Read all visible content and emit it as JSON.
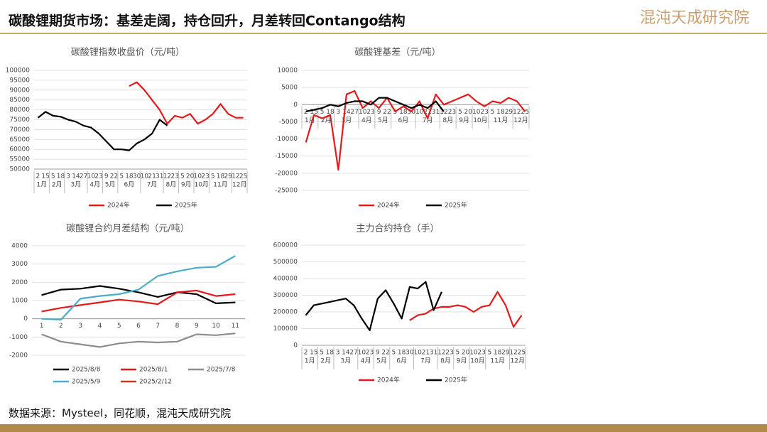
{
  "header": {
    "title": "碳酸锂期货市场：基差走阔，持仓回升，月差转回Contango结构",
    "logo": "混沌天成研究院"
  },
  "footer": {
    "source": "数据来源：Mysteel，同花顺，混沌天成研究院"
  },
  "chart_data": [
    {
      "type": "line",
      "title": "碳酸锂指数收盘价（元/吨）",
      "categories": [
        "2",
        "15",
        "5",
        "18",
        "3",
        "14",
        "27",
        "10",
        "23",
        "9",
        "22",
        "5",
        "18",
        "30",
        "10",
        "21",
        "31",
        "12",
        "23",
        "5",
        "20",
        "10",
        "23",
        "5",
        "18",
        "29",
        "12",
        "25"
      ],
      "groups": [
        {
          "label": "1月",
          "span": 2
        },
        {
          "label": "2月",
          "span": 2
        },
        {
          "label": "3月",
          "span": 3
        },
        {
          "label": "4月",
          "span": 2
        },
        {
          "label": "5月",
          "span": 2
        },
        {
          "label": "6月",
          "span": 3
        },
        {
          "label": "7月",
          "span": 3
        },
        {
          "label": "8月",
          "span": 2
        },
        {
          "label": "9月",
          "span": 2
        },
        {
          "label": "10月",
          "span": 2
        },
        {
          "label": "11月",
          "span": 3
        },
        {
          "label": "12月",
          "span": 2
        }
      ],
      "series": [
        {
          "name": "2024年",
          "color": "#e31a1c",
          "values": [
            null,
            null,
            null,
            null,
            null,
            null,
            null,
            null,
            null,
            null,
            null,
            null,
            92000,
            94000,
            90000,
            85000,
            80000,
            73000,
            77000,
            76000,
            78000,
            73000,
            75000,
            78000,
            83000,
            78000,
            76000,
            76000
          ]
        },
        {
          "name": "2025年",
          "color": "#000000",
          "values": [
            76000,
            79000,
            77000,
            76500,
            75000,
            74000,
            72000,
            71000,
            68000,
            64000,
            60000,
            60000,
            59500,
            63000,
            65000,
            68000,
            75000,
            72000,
            null,
            null,
            null,
            null,
            null,
            null,
            null,
            null,
            null,
            null
          ]
        }
      ],
      "ylim": [
        50000,
        100000
      ],
      "yticks": [
        50000,
        55000,
        60000,
        65000,
        70000,
        75000,
        80000,
        85000,
        90000,
        95000,
        100000
      ]
    },
    {
      "type": "line",
      "title": "碳酸锂基差（元/吨）",
      "categories": [
        "2",
        "15",
        "5",
        "18",
        "3",
        "14",
        "27",
        "10",
        "23",
        "9",
        "22",
        "5",
        "18",
        "30",
        "10",
        "21",
        "31",
        "12",
        "23",
        "5",
        "20",
        "10",
        "23",
        "5",
        "18",
        "29",
        "12",
        "25"
      ],
      "groups": [
        {
          "label": "1月",
          "span": 2
        },
        {
          "label": "2月",
          "span": 2
        },
        {
          "label": "3月",
          "span": 3
        },
        {
          "label": "4月",
          "span": 2
        },
        {
          "label": "5月",
          "span": 2
        },
        {
          "label": "6月",
          "span": 3
        },
        {
          "label": "7月",
          "span": 3
        },
        {
          "label": "8月",
          "span": 2
        },
        {
          "label": "9月",
          "span": 2
        },
        {
          "label": "10月",
          "span": 2
        },
        {
          "label": "11月",
          "span": 3
        },
        {
          "label": "12月",
          "span": 2
        }
      ],
      "series": [
        {
          "name": "2024年",
          "color": "#e31a1c",
          "values": [
            -11000,
            -3000,
            -4000,
            -3000,
            -19000,
            3000,
            4000,
            -1000,
            1000,
            -1000,
            2000,
            -2000,
            -500,
            -2000,
            1000,
            -4000,
            3000,
            0,
            1000,
            2000,
            3000,
            1000,
            -500,
            1000,
            500,
            2000,
            1000,
            -2000
          ]
        },
        {
          "name": "2025年",
          "color": "#000000",
          "values": [
            -2000,
            -1500,
            -1000,
            0,
            -500,
            500,
            1000,
            1000,
            0,
            2000,
            2000,
            1000,
            0,
            -1000,
            0,
            -1000,
            1000,
            -2000,
            null,
            null,
            null,
            null,
            null,
            null,
            null,
            null,
            null,
            null
          ]
        }
      ],
      "ylim": [
        -25000,
        10000
      ],
      "yticks": [
        -25000,
        -20000,
        -15000,
        -10000,
        -5000,
        0,
        5000,
        10000
      ]
    },
    {
      "type": "line",
      "title": "碳酸锂合约月差结构（元/吨）",
      "categories": [
        "1",
        "2",
        "3",
        "4",
        "5",
        "6",
        "7",
        "8",
        "9",
        "10",
        "11"
      ],
      "series": [
        {
          "name": "2025/8/8",
          "color": "#000000",
          "values": [
            1300,
            1600,
            1650,
            1800,
            1650,
            1450,
            1200,
            1450,
            1350,
            850,
            900
          ]
        },
        {
          "name": "2025/8/1",
          "color": "#e31a1c",
          "values": [
            400,
            600,
            750,
            900,
            1050,
            950,
            800,
            1450,
            1550,
            1250,
            1350
          ]
        },
        {
          "name": "2025/7/8",
          "color": "#8c8c8c",
          "values": [
            -850,
            -1250,
            -1400,
            -1550,
            -1350,
            -1250,
            -1300,
            -1250,
            -850,
            -900,
            -800
          ]
        },
        {
          "name": "2025/5/9",
          "color": "#4bacc6",
          "values": [
            0,
            -50,
            1100,
            1250,
            1350,
            1600,
            2350,
            2600,
            2800,
            2850,
            3450
          ]
        },
        {
          "name": "2025/2/12",
          "color": "#c0392b",
          "values": [
            null,
            null,
            null,
            null,
            null,
            null,
            null,
            null,
            null,
            null,
            null
          ]
        }
      ],
      "ylim": [
        -2000,
        4000
      ],
      "yticks": [
        -2000,
        -1000,
        0,
        1000,
        2000,
        3000,
        4000
      ]
    },
    {
      "type": "line",
      "title": "主力合约持仓（手）",
      "categories": [
        "2",
        "15",
        "5",
        "18",
        "3",
        "14",
        "27",
        "10",
        "23",
        "9",
        "22",
        "5",
        "18",
        "30",
        "10",
        "21",
        "31",
        "12",
        "23",
        "5",
        "20",
        "10",
        "23",
        "5",
        "18",
        "29",
        "12",
        "25"
      ],
      "groups": [
        {
          "label": "1月",
          "span": 2
        },
        {
          "label": "2月",
          "span": 2
        },
        {
          "label": "3月",
          "span": 3
        },
        {
          "label": "4月",
          "span": 2
        },
        {
          "label": "5月",
          "span": 2
        },
        {
          "label": "6月",
          "span": 3
        },
        {
          "label": "7月",
          "span": 3
        },
        {
          "label": "8月",
          "span": 2
        },
        {
          "label": "9月",
          "span": 2
        },
        {
          "label": "10月",
          "span": 2
        },
        {
          "label": "11月",
          "span": 3
        },
        {
          "label": "12月",
          "span": 2
        }
      ],
      "series": [
        {
          "name": "2024年",
          "color": "#e31a1c",
          "values": [
            null,
            null,
            null,
            null,
            null,
            null,
            null,
            null,
            null,
            null,
            null,
            null,
            null,
            150000,
            180000,
            190000,
            220000,
            230000,
            230000,
            240000,
            230000,
            200000,
            230000,
            240000,
            320000,
            240000,
            110000,
            180000
          ]
        },
        {
          "name": "2025年",
          "color": "#000000",
          "values": [
            180000,
            240000,
            250000,
            260000,
            270000,
            280000,
            240000,
            160000,
            90000,
            280000,
            330000,
            250000,
            160000,
            350000,
            340000,
            380000,
            210000,
            320000,
            null,
            null,
            null,
            null,
            null,
            null,
            null,
            null,
            null,
            null
          ]
        }
      ],
      "ylim": [
        0,
        600000
      ],
      "yticks": [
        0,
        100000,
        200000,
        300000,
        400000,
        500000,
        600000
      ]
    }
  ]
}
